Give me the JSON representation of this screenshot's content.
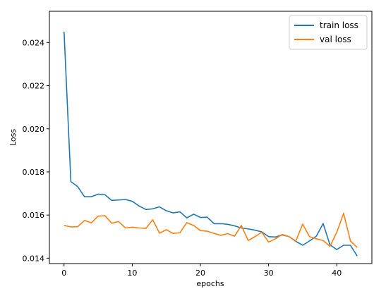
{
  "chart_data": {
    "type": "line",
    "xlabel": "epochs",
    "ylabel": "Loss",
    "xlim": [
      -2.15,
      45.15
    ],
    "ylim": [
      0.01375,
      0.02545
    ],
    "xticks": [
      0,
      10,
      20,
      30,
      40
    ],
    "yticks": [
      0.014,
      0.016,
      0.018,
      0.02,
      0.022,
      0.024
    ],
    "ytick_labels": [
      "0.014",
      "0.016",
      "0.018",
      "0.020",
      "0.022",
      "0.024"
    ],
    "grid": false,
    "legend": "top-right",
    "series": [
      {
        "name": "train loss",
        "color": "#1f77b4",
        "x": [
          0,
          1,
          2,
          3,
          4,
          5,
          6,
          7,
          8,
          9,
          10,
          11,
          12,
          13,
          14,
          15,
          16,
          17,
          18,
          19,
          20,
          21,
          22,
          23,
          24,
          25,
          26,
          27,
          28,
          29,
          30,
          31,
          32,
          33,
          34,
          35,
          36,
          37,
          38,
          39,
          40,
          41,
          42,
          43
        ],
        "values": [
          0.0245,
          0.01755,
          0.01732,
          0.01685,
          0.01685,
          0.01697,
          0.01694,
          0.01668,
          0.0167,
          0.01672,
          0.01664,
          0.01642,
          0.01626,
          0.01629,
          0.01638,
          0.0162,
          0.0161,
          0.01615,
          0.01587,
          0.01604,
          0.01589,
          0.0159,
          0.0156,
          0.0156,
          0.01557,
          0.0155,
          0.0154,
          0.01536,
          0.0153,
          0.01522,
          0.015,
          0.01498,
          0.01508,
          0.015,
          0.01478,
          0.0146,
          0.0148,
          0.01502,
          0.01561,
          0.01462,
          0.0144,
          0.0146,
          0.0146,
          0.0141
        ]
      },
      {
        "name": "val loss",
        "color": "#ff7f0e",
        "x": [
          0,
          1,
          2,
          3,
          4,
          5,
          6,
          7,
          8,
          9,
          10,
          11,
          12,
          13,
          14,
          15,
          16,
          17,
          18,
          19,
          20,
          21,
          22,
          23,
          24,
          25,
          26,
          27,
          28,
          29,
          30,
          31,
          32,
          33,
          34,
          35,
          36,
          37,
          38,
          39,
          40,
          41,
          42,
          43
        ],
        "values": [
          0.01552,
          0.01545,
          0.01546,
          0.01575,
          0.01564,
          0.01595,
          0.01597,
          0.01562,
          0.0157,
          0.0154,
          0.01544,
          0.0154,
          0.01538,
          0.01578,
          0.01516,
          0.01532,
          0.01515,
          0.01518,
          0.01565,
          0.01552,
          0.01528,
          0.01525,
          0.01515,
          0.01506,
          0.01514,
          0.01502,
          0.01552,
          0.01482,
          0.015,
          0.0152,
          0.01475,
          0.0149,
          0.0151,
          0.015,
          0.0148,
          0.01558,
          0.015,
          0.0149,
          0.01482,
          0.01455,
          0.0152,
          0.01608,
          0.0148,
          0.0145
        ]
      }
    ]
  }
}
